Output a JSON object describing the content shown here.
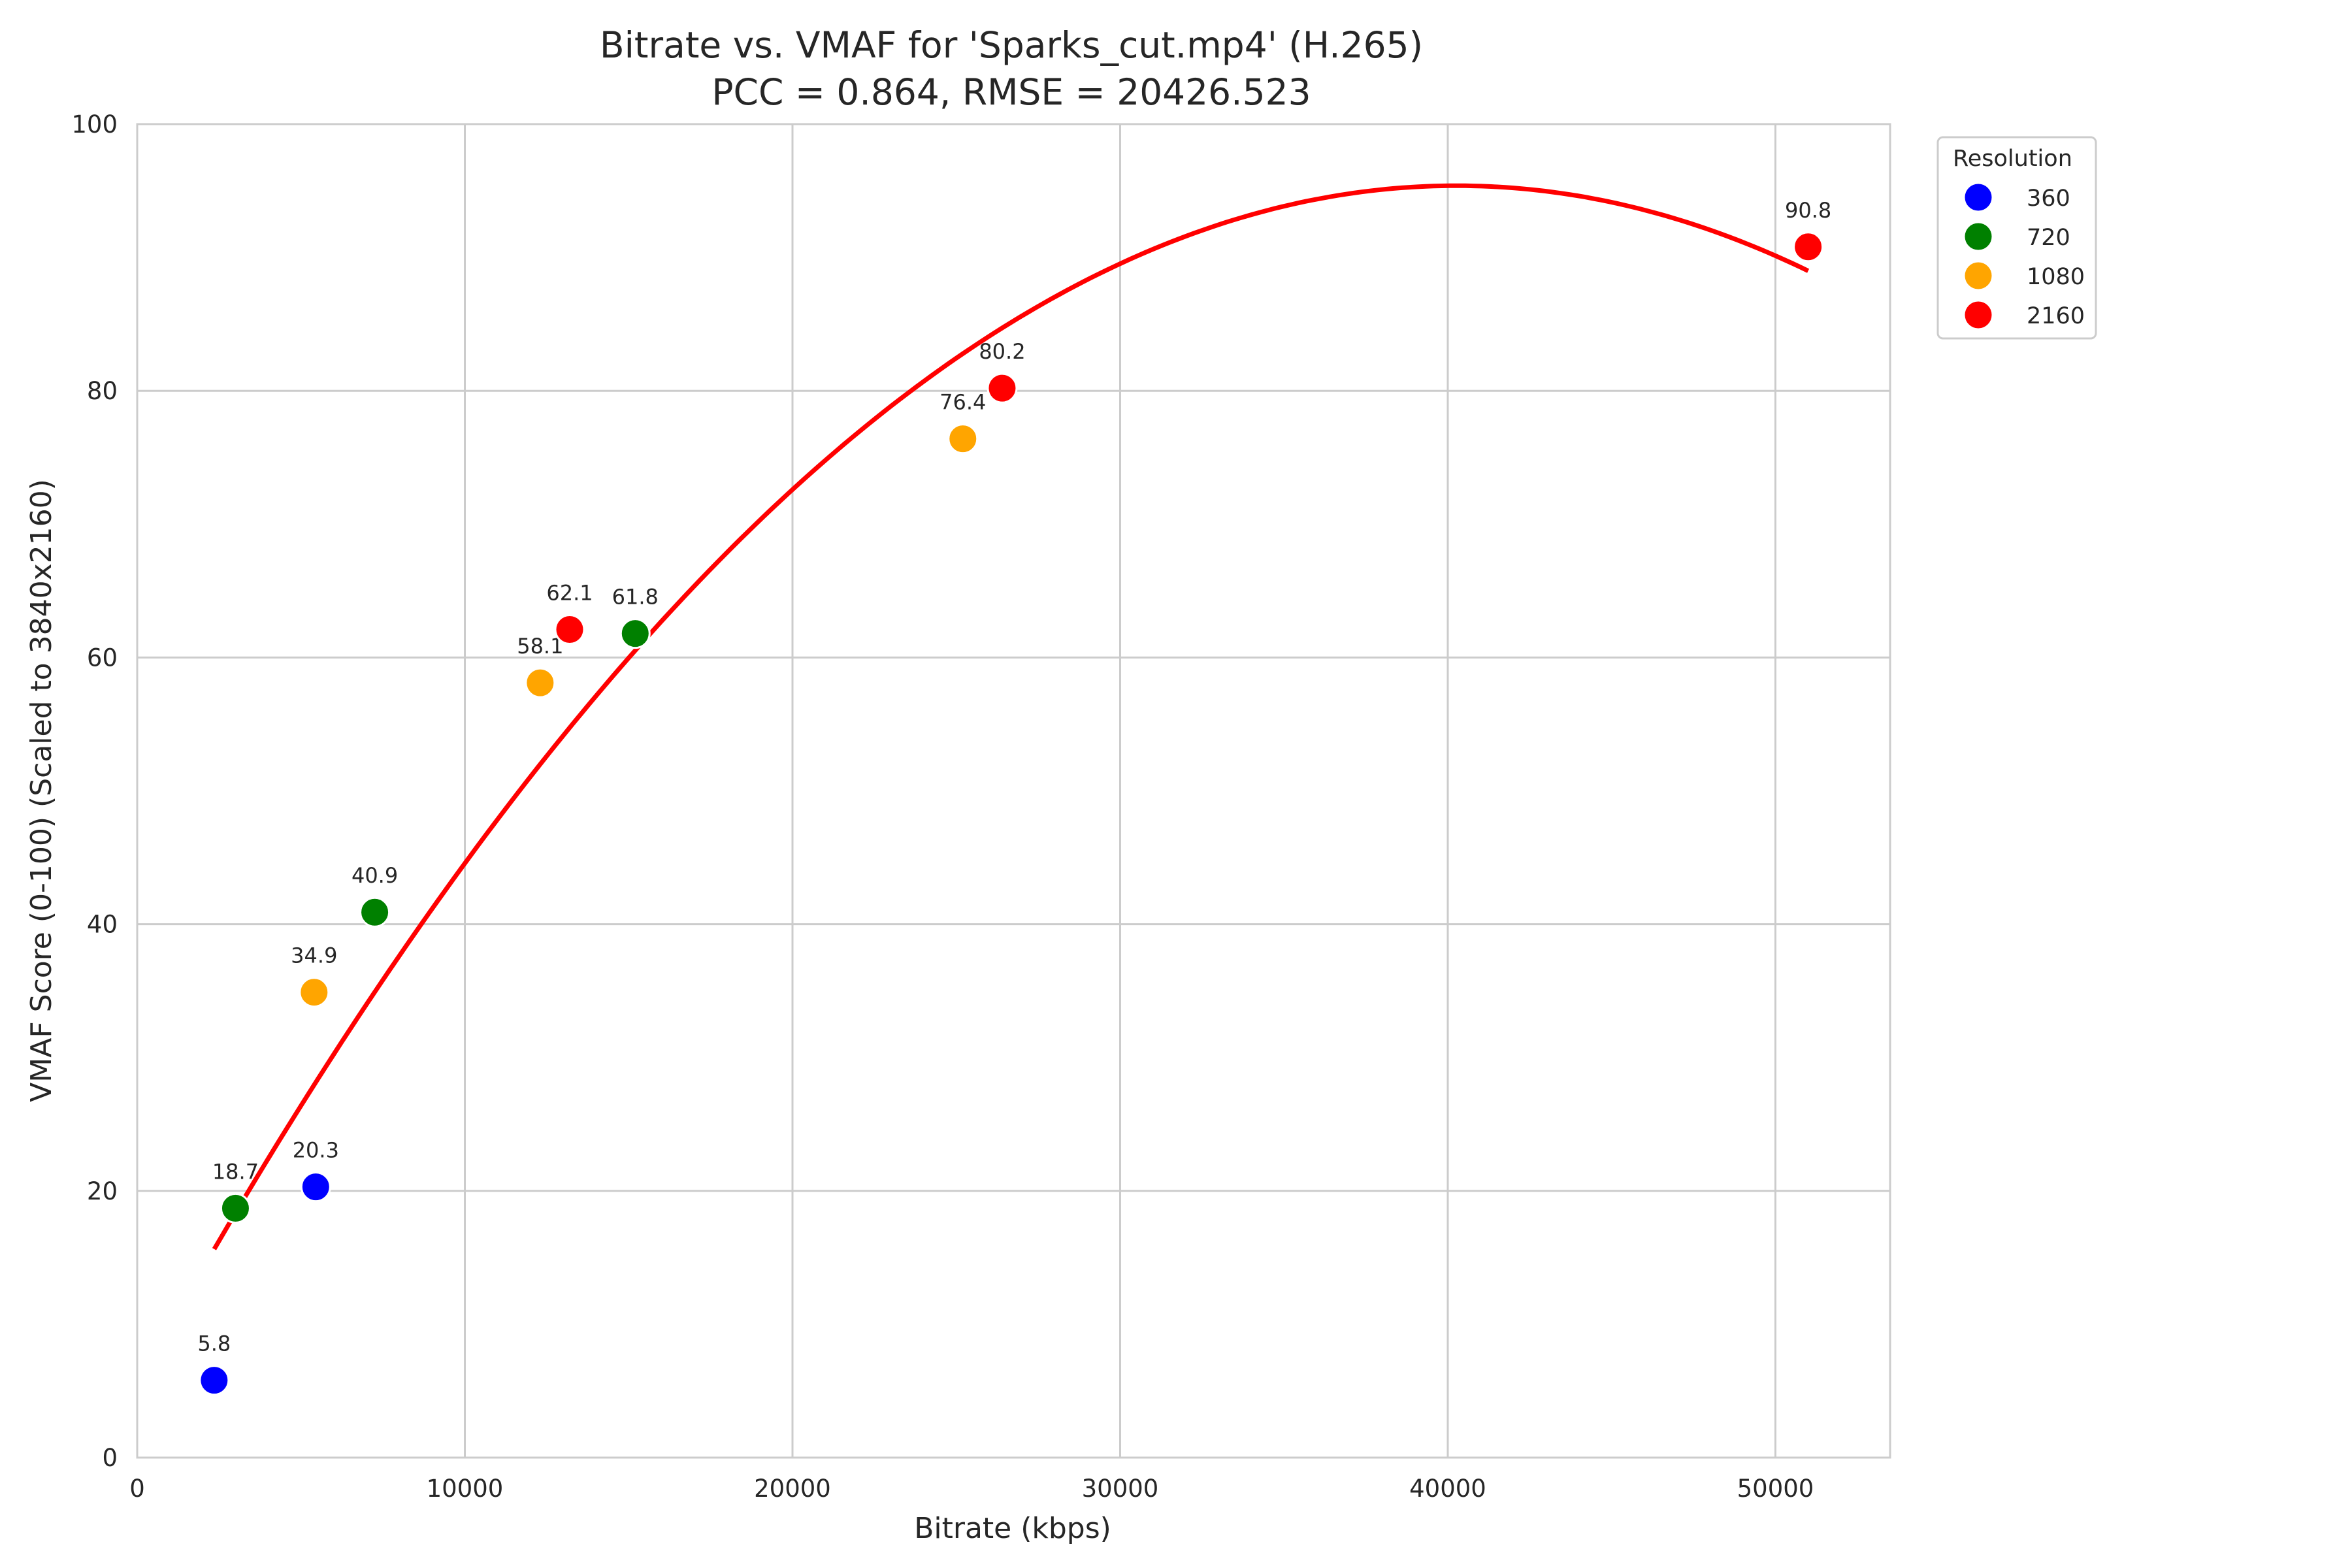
{
  "chart_data": {
    "type": "scatter",
    "title": "Bitrate vs. VMAF for 'Sparks_cut.mp4' (H.265)",
    "subtitle": "PCC = 0.864, RMSE = 20426.523",
    "xlabel": "Bitrate (kbps)",
    "ylabel": "VMAF Score (0-100) (Scaled to 3840x2160)",
    "xlim": [
      0,
      53500
    ],
    "ylim": [
      0,
      100
    ],
    "xticks": [
      0,
      10000,
      20000,
      30000,
      40000,
      50000
    ],
    "yticks": [
      0,
      20,
      40,
      60,
      80,
      100
    ],
    "grid": true,
    "legend": {
      "title": "Resolution",
      "placement": "outside-top-right"
    },
    "series": [
      {
        "name": "360",
        "color": "#0000ff",
        "points": [
          [
            2350,
            5.8
          ],
          [
            5450,
            20.3
          ]
        ]
      },
      {
        "name": "720",
        "color": "#008000",
        "points": [
          [
            3000,
            18.7
          ],
          [
            7250,
            40.9
          ],
          [
            15200,
            61.8
          ]
        ]
      },
      {
        "name": "1080",
        "color": "#ffa500",
        "points": [
          [
            5400,
            34.9
          ],
          [
            12300,
            58.1
          ],
          [
            25200,
            76.4
          ]
        ]
      },
      {
        "name": "2160",
        "color": "#ff0000",
        "points": [
          [
            13200,
            62.1
          ],
          [
            26400,
            80.2
          ],
          [
            51000,
            90.8
          ]
        ]
      }
    ],
    "fit_curve": {
      "type": "quadratic",
      "color": "#ff0000",
      "points": [
        [
          2350,
          15.4
        ],
        [
          10000,
          45.0
        ],
        [
          20000,
          72.5
        ],
        [
          30000,
          89.3
        ],
        [
          40000,
          95.5
        ],
        [
          51000,
          89.0
        ]
      ]
    }
  }
}
